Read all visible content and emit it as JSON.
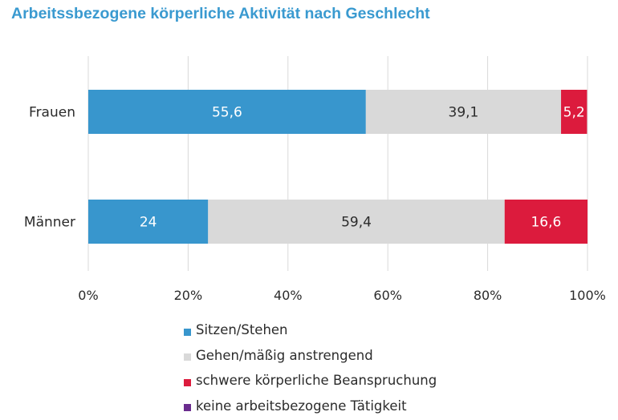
{
  "chart_data": {
    "type": "bar",
    "orientation": "horizontal",
    "stacked": true,
    "title": "Arbeitssbezogene körperliche Aktivität nach Geschlecht",
    "categories": [
      "Frauen",
      "Männer"
    ],
    "series": [
      {
        "name": "Sitzen/Stehen",
        "color": "#3896cd",
        "text_color": "#ffffff",
        "values": [
          55.6,
          24
        ],
        "labels": [
          "55,6",
          "24"
        ]
      },
      {
        "name": "Gehen/mäßig anstrengend",
        "color": "#d9d9d9",
        "text_color": "#2b2b2b",
        "values": [
          39.1,
          59.4
        ],
        "labels": [
          "39,1",
          "59,4"
        ]
      },
      {
        "name": "schwere körperliche Beanspruchung",
        "color": "#dc1b3d",
        "text_color": "#ffffff",
        "values": [
          5.2,
          16.6
        ],
        "labels": [
          "5,2",
          "16,6"
        ]
      },
      {
        "name": "keine arbeitsbezogene Tätigkeit",
        "color": "#6a2c8e",
        "text_color": "#ffffff",
        "values": [
          0,
          0
        ],
        "labels": [
          "",
          ""
        ]
      }
    ],
    "xlim": [
      0,
      100
    ],
    "x_ticks": [
      "0%",
      "20%",
      "40%",
      "60%",
      "80%",
      "100%"
    ],
    "grid": "vertical",
    "legend_position": "bottom"
  }
}
